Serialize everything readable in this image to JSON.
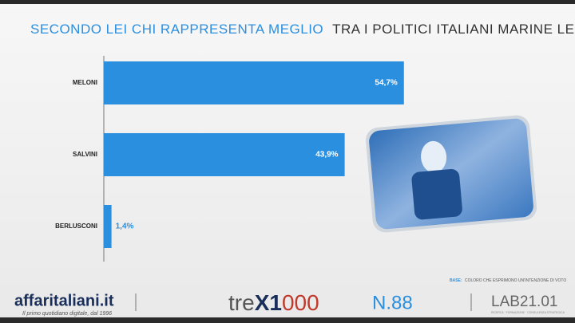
{
  "chart_data": {
    "type": "bar",
    "orientation": "horizontal",
    "title_highlight": "SECONDO LEI CHI RAPPRESENTA MEGLIO",
    "title": "TRA I POLITICI ITALIANI MARINE LE PEN?",
    "categories": [
      "MELONI",
      "SALVINI",
      "BERLUSCONI"
    ],
    "values": [
      54.7,
      43.9,
      1.4
    ],
    "value_labels": [
      "54,7%",
      "43,9%",
      "1,4%"
    ],
    "color": "#2b8fe0",
    "base_label": "BASE:",
    "base_note": "COLORO CHE ESPRIMONO UN'INTENZIONE DI VOTO"
  },
  "footer": {
    "brand": "affaritaliani.it",
    "tagline": "Il primo quotidiano digitale, dal 1996",
    "trex": [
      "tre",
      "X1",
      "000"
    ],
    "issue": "N.88",
    "lab": "LAB21.01",
    "lab_tagline": "RICERCA · FORMAZIONE · CONSULENZA STRATEGICA"
  }
}
